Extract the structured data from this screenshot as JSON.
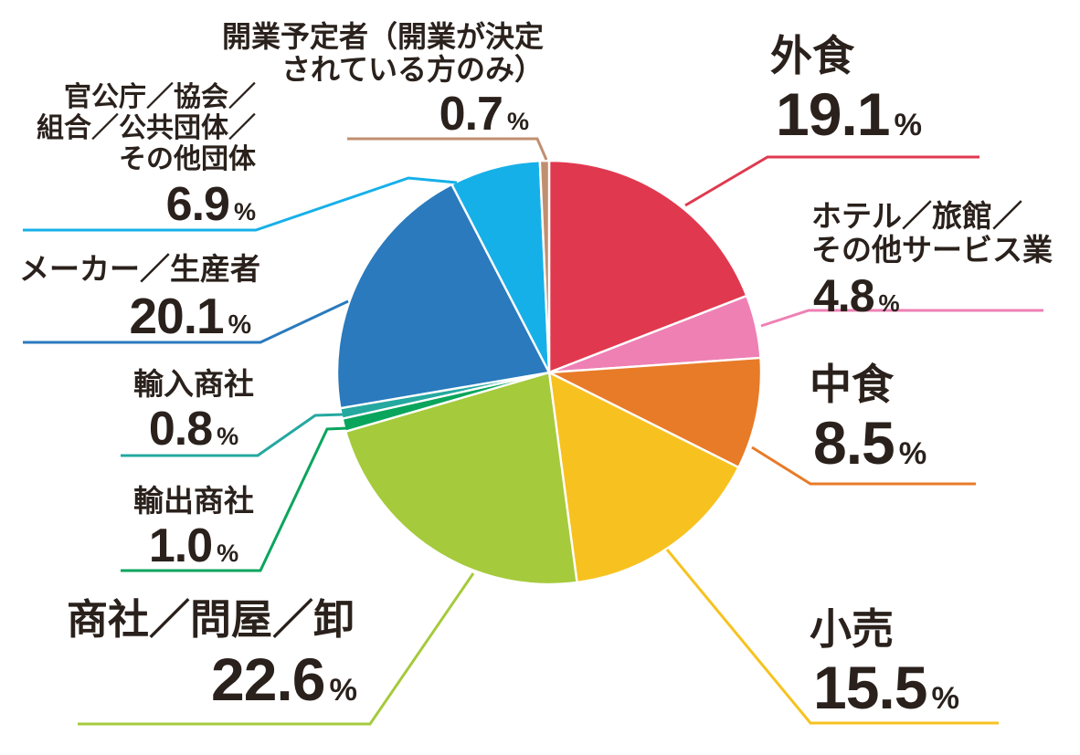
{
  "percent_suffix": "%",
  "chart_data": {
    "type": "pie",
    "title": "",
    "legend_position": "none",
    "start_angle": "12-oclock",
    "direction": "clockwise",
    "total": 100.0,
    "segments": [
      {
        "id": "gaishoku",
        "label": "外食",
        "label_lines": [
          "外食"
        ],
        "value": 19.1,
        "value_display": "19.1",
        "color": "#e0394f"
      },
      {
        "id": "hotel",
        "label": "ホテル／旅館／その他サービス業",
        "label_lines": [
          "ホテル／旅館／",
          "その他サービス業"
        ],
        "value": 4.8,
        "value_display": "4.8",
        "color": "#ee80b4"
      },
      {
        "id": "nakashoku",
        "label": "中食",
        "label_lines": [
          "中食"
        ],
        "value": 8.5,
        "value_display": "8.5",
        "color": "#e87b28"
      },
      {
        "id": "kouri",
        "label": "小売",
        "label_lines": [
          "小売"
        ],
        "value": 15.5,
        "value_display": "15.5",
        "color": "#f7c220"
      },
      {
        "id": "shosha",
        "label": "商社／問屋／卸",
        "label_lines": [
          "商社／問屋／卸"
        ],
        "value": 22.6,
        "value_display": "22.6",
        "color": "#a5ca3c"
      },
      {
        "id": "yushutsu",
        "label": "輸出商社",
        "label_lines": [
          "輸出商社"
        ],
        "value": 1.0,
        "value_display": "1.0",
        "color": "#0aa55d"
      },
      {
        "id": "yunyu",
        "label": "輸入商社",
        "label_lines": [
          "輸入商社"
        ],
        "value": 0.8,
        "value_display": "0.8",
        "color": "#24a8a0"
      },
      {
        "id": "maker",
        "label": "メーカー／生産者",
        "label_lines": [
          "メーカー／生産者"
        ],
        "value": 20.1,
        "value_display": "20.1",
        "color": "#2a7abd"
      },
      {
        "id": "kankocho",
        "label": "官公庁／協会／組合／公共団体／その他団体",
        "label_lines": [
          "官公庁／協会／",
          "組合／公共団体／",
          "その他団体"
        ],
        "value": 6.9,
        "value_display": "6.9",
        "color": "#16b0e9"
      },
      {
        "id": "kaigyo",
        "label": "開業予定者（開業が決定されている方のみ）",
        "label_lines": [
          "開業予定者（開業が決定",
          "されている方のみ）"
        ],
        "value": 0.7,
        "value_display": "0.7",
        "color": "#c18f70"
      }
    ]
  }
}
